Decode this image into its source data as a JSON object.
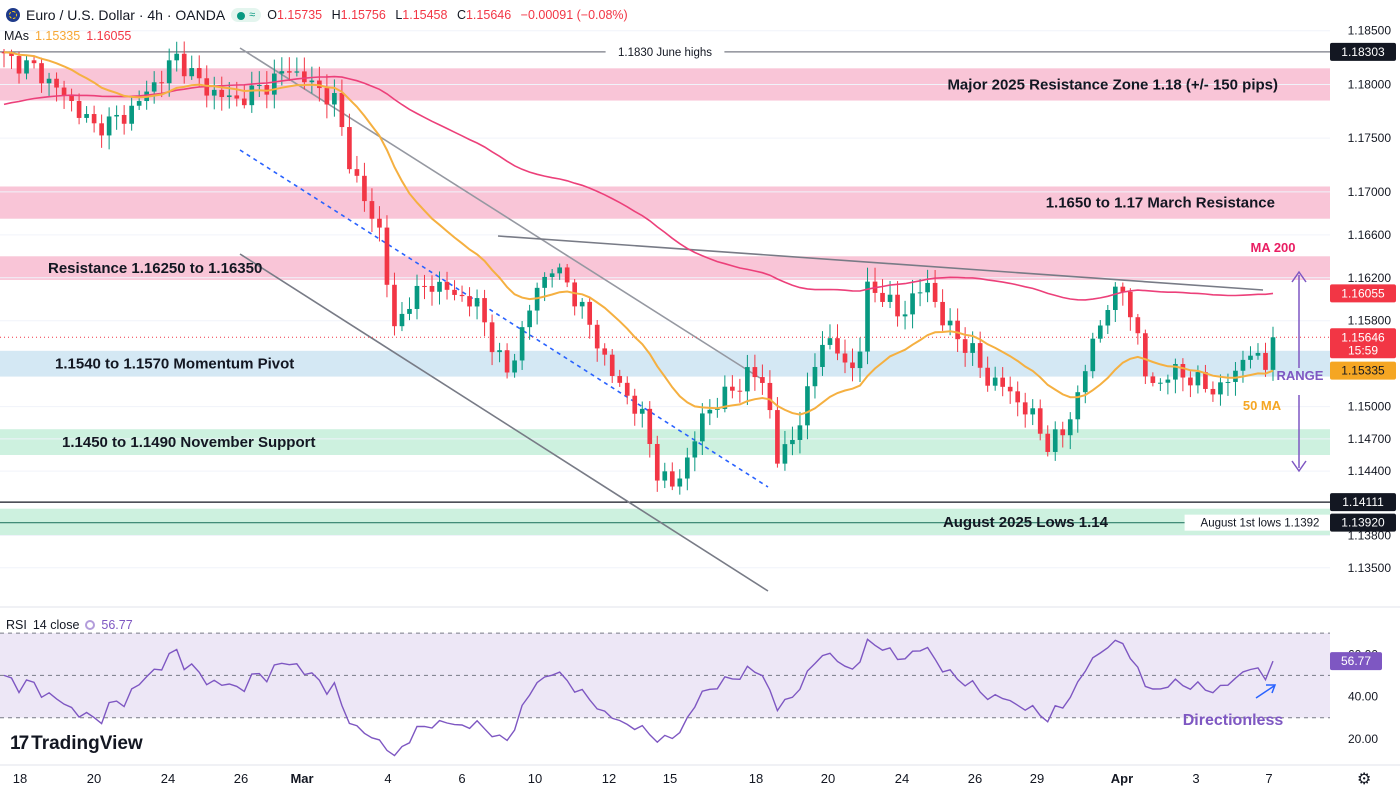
{
  "header": {
    "symbol": "Euro / U.S. Dollar · 4h · OANDA",
    "ohlc": {
      "o_label": "O",
      "o": "1.15735",
      "h_label": "H",
      "h": "1.15756",
      "l_label": "L",
      "l": "1.15458",
      "c_label": "C",
      "c": "1.15646",
      "change": "−0.00091 (−0.08%)"
    },
    "ma_legend": {
      "label": "MAs",
      "ma50": "1.15335",
      "ma200": "1.16055"
    }
  },
  "rsi_legend": {
    "label": "RSI",
    "params": "14 close",
    "value": "56.77"
  },
  "branding": {
    "logo_mark": "17",
    "logo_text": "TradingView"
  },
  "icons": {
    "settings": "gear-icon",
    "flag": "eur-flag-icon"
  },
  "colors": {
    "up": "#089981",
    "down": "#f23645",
    "ma50": "#f5b041",
    "ma200": "#ec407a",
    "resistance_zone": "#f8bbd0",
    "pivot_zone": "#cfe5f3",
    "support_zone": "#c8f0dc",
    "rsi": "#7e57c2",
    "rsi_band": "#ede7f6",
    "annotation": "#7e57c2"
  },
  "chart_data": {
    "type": "candlestick",
    "timeframe": "4h",
    "y_axis": {
      "range": [
        1.132,
        1.186
      ],
      "ticks": [
        "1.18500",
        "1.18000",
        "1.17500",
        "1.17000",
        "1.16600",
        "1.16200",
        "1.15800",
        "1.15000",
        "1.14700",
        "1.14400",
        "1.13800",
        "1.13500"
      ],
      "price_labels": [
        {
          "value": 1.18303,
          "text": "1.18303",
          "style": "dark"
        },
        {
          "value": 1.16055,
          "text": "1.16055",
          "style": "ma200"
        },
        {
          "value": 1.15646,
          "text": "1.15646",
          "sub": "15:59",
          "style": "last"
        },
        {
          "value": 1.15335,
          "text": "1.15335",
          "style": "ma50"
        },
        {
          "value": 1.14111,
          "text": "1.14111",
          "style": "dark"
        },
        {
          "value": 1.1392,
          "text": "1.13920",
          "style": "dark"
        }
      ]
    },
    "x_axis": {
      "labels": [
        "18",
        "20",
        "24",
        "26",
        "Mar",
        "4",
        "6",
        "10",
        "12",
        "15",
        "18",
        "20",
        "24",
        "26",
        "29",
        "Apr",
        "3",
        "7"
      ],
      "bold_labels": [
        "Mar",
        "Apr"
      ]
    },
    "zones": [
      {
        "name": "Major 2025 Resistance Zone 1.18 (+/- 150 pips)",
        "from": 1.1785,
        "to": 1.1815,
        "kind": "resistance"
      },
      {
        "name": "1.1650 to 1.17 March Resistance",
        "from": 1.1675,
        "to": 1.1705,
        "kind": "resistance"
      },
      {
        "name": "Resistance 1.16250 to 1.16350",
        "from": 1.1618,
        "to": 1.164,
        "kind": "resistance"
      },
      {
        "name": "1.1540 to 1.1570 Momentum Pivot",
        "from": 1.1528,
        "to": 1.1552,
        "kind": "pivot"
      },
      {
        "name": "1.1450 to 1.1490 November Support",
        "from": 1.1455,
        "to": 1.1479,
        "kind": "support"
      },
      {
        "name": "August 2025 Lows 1.14",
        "from": 1.138,
        "to": 1.1405,
        "kind": "support"
      }
    ],
    "levels": [
      {
        "label": "1.1830 June highs",
        "value": 1.18303
      },
      {
        "label": "",
        "value": 1.14111
      },
      {
        "label": "August 1st lows 1.1392",
        "value": 1.1392
      }
    ],
    "annotations": {
      "ma200": "MA 200",
      "ma50": "50 MA",
      "range": "RANGE",
      "rsi_note": "Directionless"
    },
    "rsi": {
      "range": [
        10,
        80
      ],
      "ticks": [
        "60.00",
        "40.00",
        "20.00"
      ],
      "levels": [
        70,
        50,
        30
      ],
      "last": 56.77
    },
    "last_close": 1.15646
  }
}
